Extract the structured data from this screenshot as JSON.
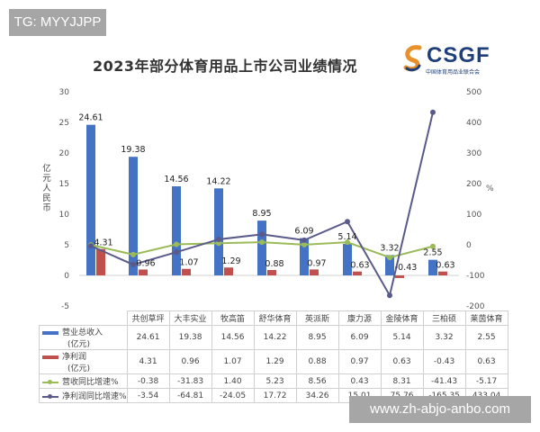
{
  "watermarks": {
    "top": "TG: MYYJJPP",
    "bottom": "www.zh-abjo-anbo.com"
  },
  "logo": {
    "text": "CSGF",
    "subtitle": "中国体育用品业联合会"
  },
  "colors": {
    "revenue_bar": "#4472c4",
    "profit_bar": "#c0504d",
    "revenue_growth_line": "#9bbb59",
    "profit_growth_line": "#5a5a8a"
  },
  "chart_data": {
    "type": "bar+line",
    "title": "2023年部分体育用品上市公司业绩情况",
    "categories": [
      "共创草坪",
      "大丰实业",
      "牧高笛",
      "舒华体育",
      "英派斯",
      "康力源",
      "金陵体育",
      "三柏硕",
      "莱茵体育"
    ],
    "series": [
      {
        "name": "营业总收入(亿元)",
        "type": "bar",
        "axis": "left",
        "values": [
          24.61,
          19.38,
          14.56,
          14.22,
          8.95,
          6.09,
          5.14,
          3.32,
          2.55
        ]
      },
      {
        "name": "净利润(亿元)",
        "type": "bar",
        "axis": "left",
        "values": [
          4.31,
          0.96,
          1.07,
          1.29,
          0.88,
          0.97,
          0.63,
          -0.43,
          0.63
        ]
      },
      {
        "name": "营收同比增速%",
        "type": "line",
        "axis": "right",
        "values": [
          -0.38,
          -31.83,
          1.4,
          5.23,
          8.56,
          0.43,
          8.31,
          -41.43,
          -5.17
        ]
      },
      {
        "name": "净利润同比增速%",
        "type": "line",
        "axis": "right",
        "values": [
          -3.54,
          -64.81,
          -24.05,
          17.72,
          34.26,
          15.01,
          75.76,
          -165.35,
          433.04
        ]
      }
    ],
    "ylabel": "亿元人民币",
    "ylim": [
      -5,
      30
    ],
    "yticks": [
      "30",
      "25",
      "20",
      "15",
      "10",
      "5",
      "0",
      "-5"
    ],
    "y2label": "%",
    "y2lim": [
      -200,
      500
    ],
    "y2ticks": [
      "500",
      "400",
      "300",
      "200",
      "100",
      "0",
      "-100",
      "-200"
    ],
    "legend_position": "data-table-below",
    "grid": false
  },
  "table": {
    "headers": [
      "共创草坪",
      "大丰实业",
      "牧高笛",
      "舒华体育",
      "英派斯",
      "康力源",
      "金陵体育",
      "三柏硕",
      "莱茵体育"
    ],
    "rows": [
      {
        "label1": "营业总收入",
        "label2": "(亿元)",
        "cells": [
          "24.61",
          "19.38",
          "14.56",
          "14.22",
          "8.95",
          "6.09",
          "5.14",
          "3.32",
          "2.55"
        ]
      },
      {
        "label1": "净利润",
        "label2": "(亿元)",
        "cells": [
          "4.31",
          "0.96",
          "1.07",
          "1.29",
          "0.88",
          "0.97",
          "0.63",
          "-0.43",
          "0.63"
        ]
      },
      {
        "label1": "营收同比增速%",
        "cells": [
          "-0.38",
          "-31.83",
          "1.40",
          "5.23",
          "8.56",
          "0.43",
          "8.31",
          "-41.43",
          "-5.17"
        ]
      },
      {
        "label1": "净利润同比增速%",
        "cells": [
          "-3.54",
          "-64.81",
          "-24.05",
          "17.72",
          "34.26",
          "15.01",
          "75.76",
          "-165.35",
          "433.04"
        ]
      }
    ]
  }
}
